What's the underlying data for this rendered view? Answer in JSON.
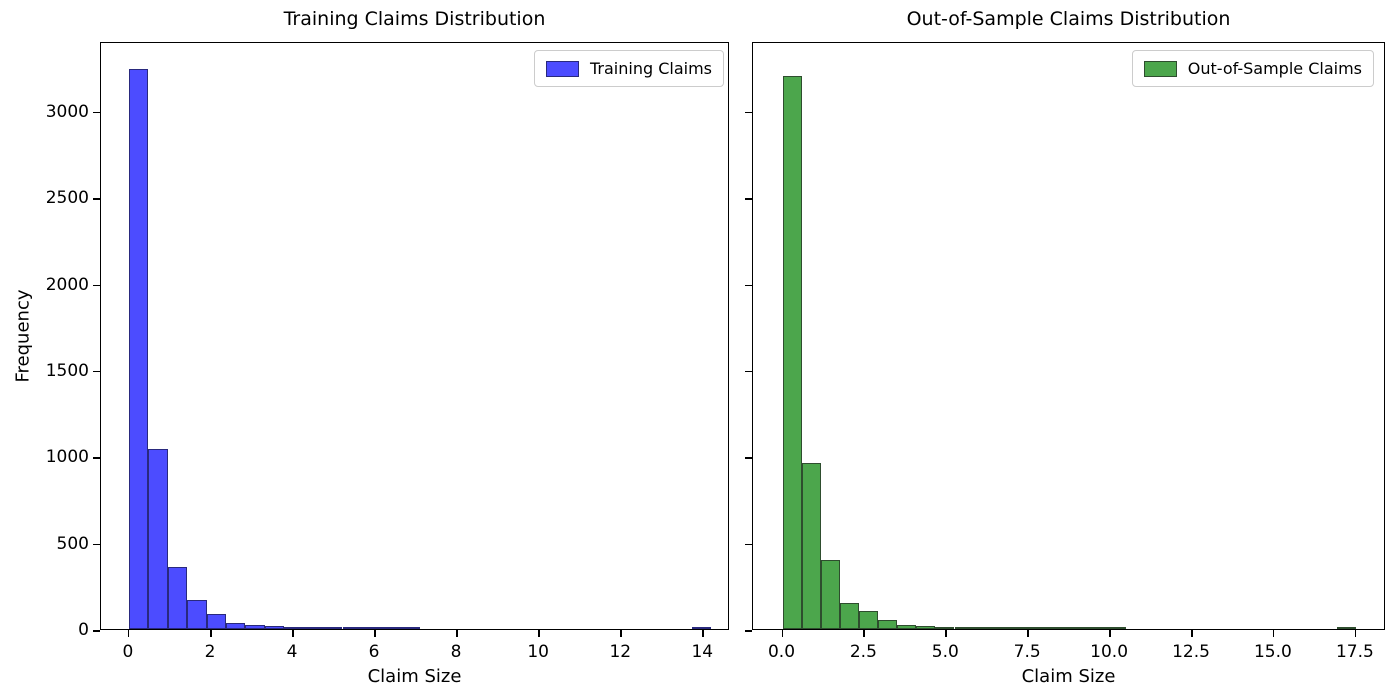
{
  "figure": {
    "background_color": "#ffffff",
    "ylabel": "Frequency"
  },
  "chart_data": [
    {
      "type": "bar",
      "subtype": "histogram",
      "title": "Training Claims Distribution",
      "xlabel": "Claim Size",
      "ylabel": "Frequency",
      "legend_label": "Training Claims",
      "legend_position": "upper right",
      "bar_color": "#4c4cff",
      "bar_edge_color": "#29297d",
      "bin_start": 0,
      "bin_width": 0.4733,
      "counts": [
        3240,
        1040,
        360,
        168,
        88,
        35,
        22,
        15,
        10,
        6,
        4,
        3,
        3,
        2,
        2,
        0,
        0,
        0,
        0,
        0,
        0,
        0,
        0,
        0,
        0,
        0,
        0,
        0,
        0,
        1
      ],
      "xlim": [
        -0.68,
        14.65
      ],
      "ylim": [
        0,
        3404
      ],
      "xticks": [
        0,
        2,
        4,
        6,
        8,
        10,
        12,
        14
      ],
      "xtick_labels": [
        "0",
        "2",
        "4",
        "6",
        "8",
        "10",
        "12",
        "14"
      ],
      "yticks": [
        0,
        500,
        1000,
        1500,
        2000,
        2500,
        3000
      ],
      "ytick_labels": [
        "0",
        "500",
        "1000",
        "1500",
        "2000",
        "2500",
        "3000"
      ],
      "show_ytick_labels": true,
      "grid": false
    },
    {
      "type": "bar",
      "subtype": "histogram",
      "title": "Out-of-Sample Claims Distribution",
      "xlabel": "Claim Size",
      "ylabel": "",
      "legend_label": "Out-of-Sample Claims",
      "legend_position": "upper right",
      "bar_color": "#4ca64c",
      "bar_edge_color": "#2e4d2e",
      "bin_start": 0,
      "bin_width": 0.58333,
      "counts": [
        3200,
        960,
        400,
        150,
        102,
        52,
        25,
        20,
        12,
        10,
        8,
        6,
        5,
        4,
        3,
        3,
        2,
        2,
        0,
        0,
        0,
        0,
        0,
        0,
        0,
        0,
        0,
        0,
        0,
        1
      ],
      "xlim": [
        -0.9,
        18.42
      ],
      "ylim": [
        0,
        3404
      ],
      "xticks": [
        0,
        2.5,
        5,
        7.5,
        10,
        12.5,
        15,
        17.5
      ],
      "xtick_labels": [
        "0.0",
        "2.5",
        "5.0",
        "7.5",
        "10.0",
        "12.5",
        "15.0",
        "17.5"
      ],
      "yticks": [
        0,
        500,
        1000,
        1500,
        2000,
        2500,
        3000
      ],
      "ytick_labels": [
        "0",
        "500",
        "1000",
        "1500",
        "2000",
        "2500",
        "3000"
      ],
      "show_ytick_labels": false,
      "grid": false
    }
  ]
}
